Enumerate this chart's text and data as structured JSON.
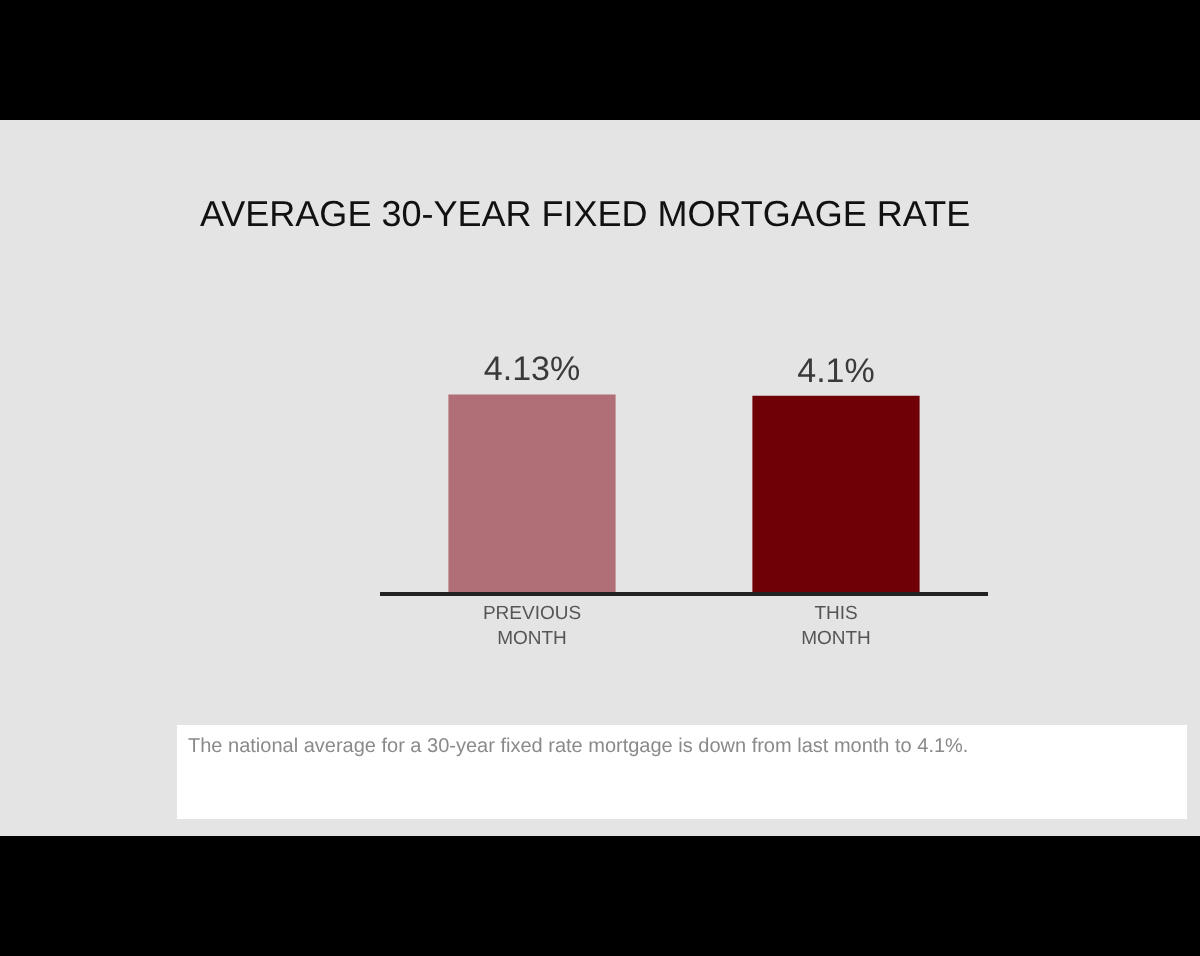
{
  "chart_data": {
    "type": "bar",
    "title": "AVERAGE 30-YEAR FIXED MORTGAGE RATE",
    "categories": [
      "PREVIOUS MONTH",
      "THIS MONTH"
    ],
    "values": [
      4.13,
      4.1
    ],
    "colors": [
      "#b06e76",
      "#6e0006"
    ],
    "value_labels": [
      "4.13%",
      "4.1%"
    ],
    "annotations": [
      "The national average for a 30-year fixed rate mortgage is down from last month to 4.1%."
    ],
    "tick_labels": "x",
    "grid": false
  }
}
